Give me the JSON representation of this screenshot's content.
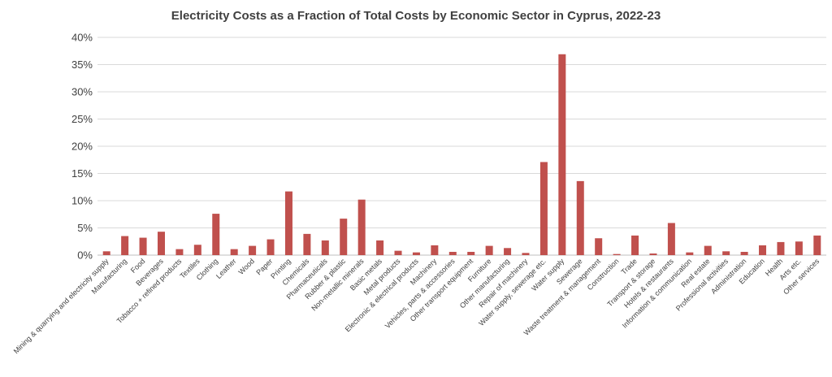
{
  "chart_data": {
    "type": "bar",
    "title": "Electricity Costs as a Fraction of Total Costs by Economic Sector in Cyprus, 2022-23",
    "xlabel": "",
    "ylabel": "",
    "ylim": [
      0,
      40
    ],
    "yticks": [
      "0%",
      "5%",
      "10%",
      "15%",
      "20%",
      "25%",
      "30%",
      "35%",
      "40%"
    ],
    "grid": true,
    "legend": "none",
    "bar_color": "#c0504d",
    "categories": [
      "Mining & quarrying and electricity supply",
      "Manufacturing",
      "Food",
      "Beverages",
      "Tobacco + refined products",
      "Textiles",
      "Clothing",
      "Leather",
      "Wood",
      "Paper",
      "Printing",
      "Chemicals",
      "Pharmaceuticals",
      "Rubber & plastic",
      "Non-metallic minerals",
      "Basic metals",
      "Metal products",
      "Electronic & electrical products",
      "Machinery",
      "Vehicles, parts & accessories",
      "Other transport equipment",
      "Furniture",
      "Other manufacturing",
      "Repair of machinery",
      "Water supply, sewerage etc.",
      "Water supply",
      "Sewerage",
      "Waste treatment & management",
      "Construction",
      "Trade",
      "Transport & storage",
      "Hotels & restaurants",
      "Information & communication",
      "Real estate",
      "Professional activities",
      "Administration",
      "Education",
      "Health",
      "Arts etc.",
      "Other services"
    ],
    "values": [
      0.7,
      3.5,
      3.2,
      4.3,
      1.1,
      1.9,
      7.6,
      1.1,
      1.7,
      2.9,
      11.7,
      3.9,
      2.7,
      6.7,
      10.2,
      2.7,
      0.8,
      0.5,
      1.8,
      0.6,
      0.6,
      1.7,
      1.3,
      0.4,
      17.1,
      36.9,
      13.6,
      3.1,
      0.2,
      3.6,
      0.3,
      5.9,
      0.5,
      1.7,
      0.7,
      0.6,
      1.8,
      2.4,
      2.5,
      3.6
    ]
  }
}
